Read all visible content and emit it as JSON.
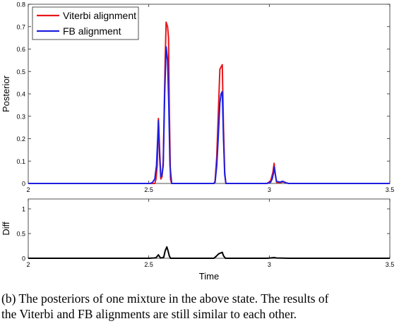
{
  "chart_data": [
    {
      "type": "line",
      "title": "",
      "xlabel": "",
      "ylabel": "Posterior",
      "xlim": [
        2,
        3.5
      ],
      "ylim": [
        0,
        0.8
      ],
      "x_ticks": [
        "2",
        "2.5",
        "3",
        "3.5"
      ],
      "y_ticks": [
        "0",
        "0.1",
        "0.2",
        "0.3",
        "0.4",
        "0.5",
        "0.6",
        "0.7",
        "0.8"
      ],
      "grid": false,
      "legend": "top-left",
      "series": [
        {
          "name": "Viterbi alignment",
          "color": "#e8161b",
          "points": [
            [
              2.0,
              0
            ],
            [
              2.5,
              0
            ],
            [
              2.525,
              0
            ],
            [
              2.53,
              0.02
            ],
            [
              2.535,
              0.08
            ],
            [
              2.54,
              0.29
            ],
            [
              2.545,
              0.15
            ],
            [
              2.55,
              0.02
            ],
            [
              2.555,
              0.03
            ],
            [
              2.56,
              0.1
            ],
            [
              2.568,
              0.55
            ],
            [
              2.572,
              0.72
            ],
            [
              2.578,
              0.7
            ],
            [
              2.582,
              0.65
            ],
            [
              2.585,
              0.35
            ],
            [
              2.59,
              0.02
            ],
            [
              2.595,
              0
            ],
            [
              2.77,
              0
            ],
            [
              2.775,
              0.01
            ],
            [
              2.782,
              0.12
            ],
            [
              2.788,
              0.3
            ],
            [
              2.795,
              0.51
            ],
            [
              2.8,
              0.52
            ],
            [
              2.805,
              0.53
            ],
            [
              2.81,
              0.25
            ],
            [
              2.815,
              0.05
            ],
            [
              2.82,
              0
            ],
            [
              2.99,
              0
            ],
            [
              3.005,
              0.01
            ],
            [
              3.015,
              0.05
            ],
            [
              3.02,
              0.09
            ],
            [
              3.025,
              0.04
            ],
            [
              3.03,
              0.005
            ],
            [
              3.045,
              0.004
            ],
            [
              3.06,
              0.008
            ],
            [
              3.07,
              0.003
            ],
            [
              3.08,
              0
            ],
            [
              3.5,
              0
            ]
          ]
        },
        {
          "name": "FB alignment",
          "color": "#1f1fe0",
          "points": [
            [
              2.0,
              0
            ],
            [
              2.505,
              0
            ],
            [
              2.515,
              0.004
            ],
            [
              2.525,
              0.02
            ],
            [
              2.532,
              0.08
            ],
            [
              2.537,
              0.2
            ],
            [
              2.54,
              0.28
            ],
            [
              2.545,
              0.12
            ],
            [
              2.55,
              0.03
            ],
            [
              2.555,
              0.04
            ],
            [
              2.56,
              0.08
            ],
            [
              2.566,
              0.4
            ],
            [
              2.572,
              0.61
            ],
            [
              2.578,
              0.55
            ],
            [
              2.583,
              0.35
            ],
            [
              2.588,
              0.08
            ],
            [
              2.595,
              0
            ],
            [
              2.77,
              0
            ],
            [
              2.775,
              0.005
            ],
            [
              2.782,
              0.08
            ],
            [
              2.788,
              0.2
            ],
            [
              2.795,
              0.36
            ],
            [
              2.8,
              0.4
            ],
            [
              2.805,
              0.41
            ],
            [
              2.81,
              0.2
            ],
            [
              2.815,
              0.04
            ],
            [
              2.82,
              0
            ],
            [
              2.99,
              0
            ],
            [
              3.005,
              0.005
            ],
            [
              3.012,
              0.02
            ],
            [
              3.018,
              0.05
            ],
            [
              3.02,
              0.075
            ],
            [
              3.025,
              0.04
            ],
            [
              3.03,
              0.01
            ],
            [
              3.045,
              0.006
            ],
            [
              3.055,
              0.01
            ],
            [
              3.065,
              0.004
            ],
            [
              3.08,
              0
            ],
            [
              3.5,
              0
            ]
          ]
        }
      ]
    },
    {
      "type": "line",
      "title": "",
      "xlabel": "Time",
      "ylabel": "Diff",
      "xlim": [
        2,
        3.5
      ],
      "ylim": [
        0,
        1.2
      ],
      "x_ticks": [
        "2",
        "2.5",
        "3",
        "3.5"
      ],
      "y_ticks": [
        "0",
        "0.5",
        "1"
      ],
      "grid": false,
      "series": [
        {
          "name": "",
          "color": "#000000",
          "points": [
            [
              2.0,
              0
            ],
            [
              2.505,
              0
            ],
            [
              2.51,
              0.003
            ],
            [
              2.52,
              0.005
            ],
            [
              2.53,
              0.01
            ],
            [
              2.535,
              0.04
            ],
            [
              2.54,
              0.07
            ],
            [
              2.545,
              0.03
            ],
            [
              2.55,
              0.005
            ],
            [
              2.555,
              0.01
            ],
            [
              2.562,
              0.02
            ],
            [
              2.568,
              0.15
            ],
            [
              2.575,
              0.23
            ],
            [
              2.58,
              0.15
            ],
            [
              2.585,
              0.05
            ],
            [
              2.59,
              0
            ],
            [
              2.77,
              0
            ],
            [
              2.78,
              0.04
            ],
            [
              2.79,
              0.09
            ],
            [
              2.8,
              0.11
            ],
            [
              2.805,
              0.12
            ],
            [
              2.81,
              0.05
            ],
            [
              2.818,
              0
            ],
            [
              2.99,
              0
            ],
            [
              3.0,
              0.003
            ],
            [
              3.02,
              0.015
            ],
            [
              3.03,
              0.005
            ],
            [
              3.05,
              0.003
            ],
            [
              3.08,
              0
            ],
            [
              3.5,
              0
            ]
          ]
        }
      ]
    }
  ],
  "caption": {
    "line1": "(b) The posteriors of one mixture in the above state. The results of",
    "line2": "the Viterbi and FB alignments are still similar to each other."
  }
}
